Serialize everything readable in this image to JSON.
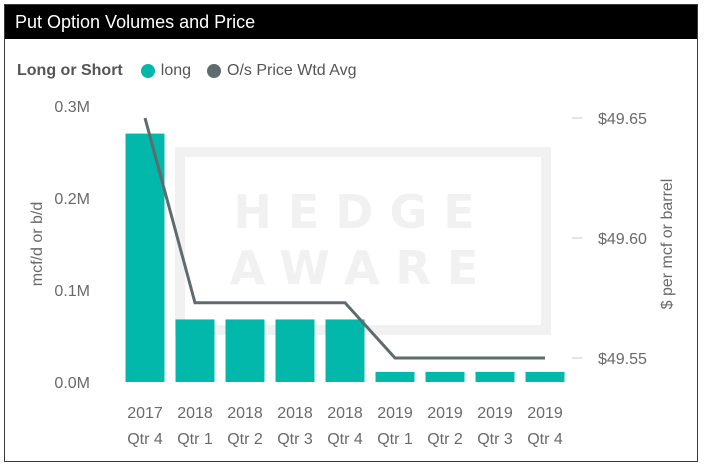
{
  "title": "Put Option Volumes and Price",
  "watermark": {
    "line1": "HEDGE",
    "line2": "AWARE"
  },
  "legend": {
    "title": "Long or Short",
    "items": [
      {
        "label": "long",
        "color": "#01B8AA"
      },
      {
        "label": "O/s Price Wtd Avg",
        "color": "#5F6B6D"
      }
    ]
  },
  "chart_data": {
    "type": "bar",
    "categories": [
      [
        "2017",
        "Qtr 4"
      ],
      [
        "2018",
        "Qtr 1"
      ],
      [
        "2018",
        "Qtr 2"
      ],
      [
        "2018",
        "Qtr 3"
      ],
      [
        "2018",
        "Qtr 4"
      ],
      [
        "2019",
        "Qtr 1"
      ],
      [
        "2019",
        "Qtr 2"
      ],
      [
        "2019",
        "Qtr 3"
      ],
      [
        "2019",
        "Qtr 4"
      ]
    ],
    "series": [
      {
        "name": "long",
        "type": "bar",
        "axis": "left",
        "values": [
          270000,
          68000,
          68000,
          68000,
          68000,
          11000,
          11000,
          11000,
          11000
        ]
      },
      {
        "name": "O/s Price Wtd Avg",
        "type": "line",
        "axis": "right",
        "values": [
          49.65,
          49.573,
          49.573,
          49.573,
          49.573,
          49.55,
          49.55,
          49.55,
          49.55
        ]
      }
    ],
    "ylabel": "mcf/d or b/d",
    "y2label": "$ per mcf or barrel",
    "ylim": [
      0,
      300000
    ],
    "yticks": [
      {
        "v": 0,
        "label": "0.0M"
      },
      {
        "v": 100000,
        "label": "0.1M"
      },
      {
        "v": 200000,
        "label": "0.2M"
      },
      {
        "v": 300000,
        "label": "0.3M"
      }
    ],
    "y2lim": [
      49.54,
      49.655
    ],
    "y2ticks": [
      {
        "v": 49.55,
        "label": "$49.55"
      },
      {
        "v": 49.6,
        "label": "$49.60"
      },
      {
        "v": 49.65,
        "label": "$49.65"
      }
    ]
  }
}
